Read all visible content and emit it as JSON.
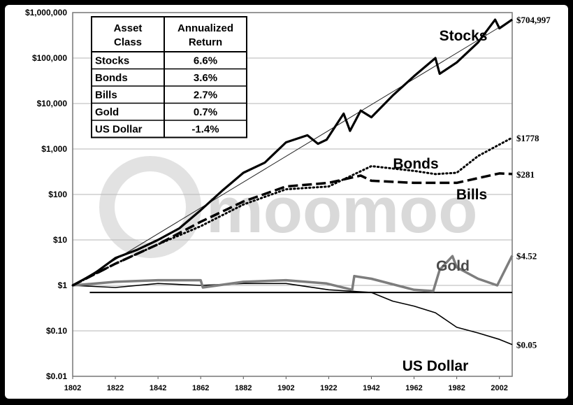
{
  "chart_data": {
    "type": "line",
    "yscale": "log",
    "ylim": [
      0.01,
      1000000
    ],
    "xlim": [
      1802,
      2008
    ],
    "y_ticks": [
      "$1,000,000",
      "$100,000",
      "$10,000",
      "$1,000",
      "$100",
      "$10",
      "$1",
      "$0.10",
      "$0.01"
    ],
    "x_ticks": [
      "1802",
      "1822",
      "1842",
      "1862",
      "1882",
      "1902",
      "1922",
      "1942",
      "1962",
      "1982",
      "2002"
    ],
    "grid": true,
    "watermark": "moomoo",
    "series": [
      {
        "name": "Stocks",
        "end_label": "$704,997",
        "style": "solid-thick",
        "x": [
          1802,
          1812,
          1822,
          1832,
          1842,
          1852,
          1862,
          1872,
          1882,
          1892,
          1902,
          1912,
          1917,
          1921,
          1929,
          1932,
          1937,
          1942,
          1952,
          1962,
          1972,
          1974,
          1982,
          1992,
          2000,
          2002,
          2008
        ],
        "y": [
          1,
          1.8,
          4,
          6,
          10,
          18,
          45,
          120,
          300,
          500,
          1400,
          2000,
          1300,
          1600,
          6000,
          2500,
          7000,
          5000,
          15000,
          40000,
          100000,
          45000,
          80000,
          220000,
          700000,
          450000,
          704997
        ]
      },
      {
        "name": "Bonds",
        "end_label": "$1778",
        "style": "dotted",
        "x": [
          1802,
          1822,
          1842,
          1862,
          1882,
          1902,
          1922,
          1942,
          1962,
          1972,
          1982,
          1992,
          2008
        ],
        "y": [
          1,
          3,
          8,
          20,
          60,
          130,
          150,
          420,
          330,
          280,
          300,
          700,
          1778
        ]
      },
      {
        "name": "Bills",
        "end_label": "$281",
        "style": "dashed",
        "x": [
          1802,
          1822,
          1842,
          1862,
          1882,
          1902,
          1922,
          1937,
          1942,
          1962,
          1982,
          2002,
          2008
        ],
        "y": [
          1,
          3,
          8,
          25,
          70,
          150,
          180,
          260,
          200,
          180,
          180,
          290,
          281
        ]
      },
      {
        "name": "Gold",
        "end_label": "$4.52",
        "style": "gray",
        "x": [
          1802,
          1822,
          1842,
          1862,
          1863,
          1882,
          1902,
          1921,
          1933,
          1934,
          1942,
          1962,
          1971,
          1974,
          1980,
          1982,
          1992,
          2001,
          2008
        ],
        "y": [
          1,
          1.2,
          1.3,
          1.3,
          0.9,
          1.2,
          1.3,
          1.1,
          0.8,
          1.6,
          1.4,
          0.8,
          0.75,
          2.2,
          4.4,
          2.5,
          1.4,
          1.0,
          4.52
        ]
      },
      {
        "name": "US Dollar",
        "end_label": "$0.05",
        "style": "solid-thin",
        "x": [
          1802,
          1822,
          1842,
          1862,
          1882,
          1902,
          1922,
          1942,
          1952,
          1962,
          1972,
          1982,
          1992,
          2002,
          2008
        ],
        "y": [
          1,
          0.9,
          1.1,
          1.0,
          1.1,
          1.1,
          0.8,
          0.7,
          0.45,
          0.35,
          0.25,
          0.12,
          0.09,
          0.065,
          0.05
        ]
      }
    ],
    "baseline": {
      "y": 0.7
    },
    "table": {
      "header": [
        "Asset\nClass",
        "Annualized\nReturn"
      ],
      "rows": [
        [
          "Stocks",
          "6.6%"
        ],
        [
          "Bonds",
          "3.6%"
        ],
        [
          "Bills",
          "2.7%"
        ],
        [
          "Gold",
          "0.7%"
        ],
        [
          "US Dollar",
          "-1.4%"
        ]
      ]
    }
  }
}
